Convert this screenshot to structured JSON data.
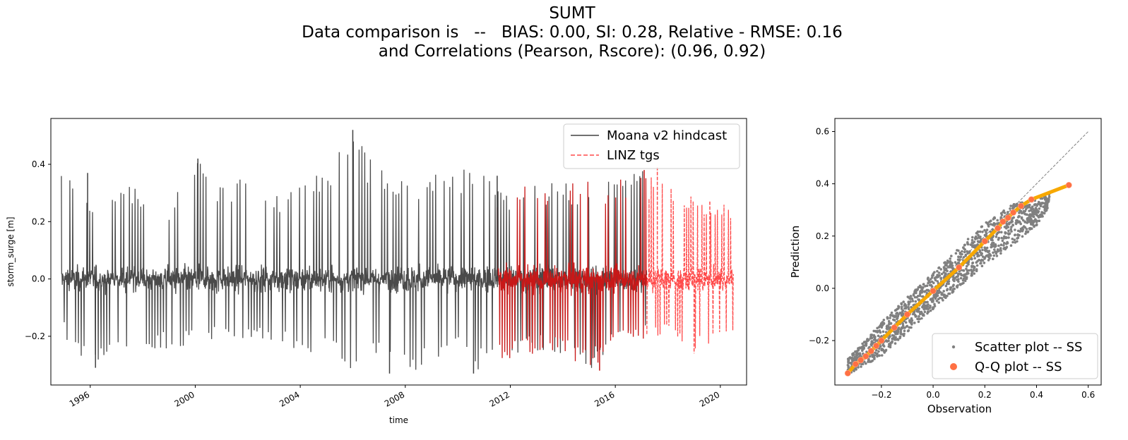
{
  "title": {
    "line1": "SUMT",
    "line2": "Data comparison is   --   BIAS: 0.00, SI: 0.28, Relative - RMSE: 0.16",
    "line3": "and Correlations (Pearson, Rscore): (0.96, 0.92)"
  },
  "colors": {
    "hindcast": "#404040",
    "tgs": "#ff4a4a",
    "overlap": "#c81818",
    "scatter": "#808080",
    "qq_face": "#ff7043",
    "qq_inner": "#f7a800",
    "diag": "#808080"
  },
  "chart_data": [
    {
      "type": "line",
      "xlabel": "time",
      "ylabel": "storm_surge [m]",
      "x_ticks": [
        "1996",
        "2000",
        "2004",
        "2008",
        "2012",
        "2016",
        "2020"
      ],
      "y_ticks": [
        "−0.2",
        "0.0",
        "0.2",
        "0.4"
      ],
      "xlim": [
        1994.5,
        2021.0
      ],
      "ylim": [
        -0.37,
        0.56
      ],
      "legend_position": "upper-right",
      "series": [
        {
          "name": "Moana v2 hindcast",
          "style": "solid",
          "x_range": [
            1994.9,
            2017.2
          ],
          "envelope": {
            "x": [
              1995,
              1996,
              1997,
              1998,
              1999,
              2000,
              2001,
              2002,
              2003,
              2004,
              2005,
              2006,
              2007,
              2008,
              2009,
              2010,
              2011,
              2012,
              2013,
              2014,
              2015,
              2016,
              2017
            ],
            "max": [
              0.37,
              0.26,
              0.34,
              0.32,
              0.25,
              0.42,
              0.33,
              0.37,
              0.29,
              0.36,
              0.37,
              0.52,
              0.39,
              0.34,
              0.38,
              0.39,
              0.36,
              0.3,
              0.35,
              0.33,
              0.36,
              0.34,
              0.38
            ],
            "min": [
              -0.2,
              -0.31,
              -0.23,
              -0.26,
              -0.24,
              -0.23,
              -0.2,
              -0.22,
              -0.23,
              -0.25,
              -0.27,
              -0.32,
              -0.29,
              -0.33,
              -0.3,
              -0.27,
              -0.33,
              -0.28,
              -0.26,
              -0.27,
              -0.32,
              -0.24,
              -0.21
            ]
          }
        },
        {
          "name": "LINZ tgs",
          "style": "dashed",
          "x_range": [
            2011.5,
            2020.5
          ],
          "envelope": {
            "x": [
              2012,
              2013,
              2014,
              2015,
              2016,
              2017,
              2018,
              2019,
              2020
            ],
            "max": [
              0.3,
              0.34,
              0.29,
              0.37,
              0.33,
              0.38,
              0.32,
              0.29,
              0.27
            ],
            "min": [
              -0.28,
              -0.26,
              -0.27,
              -0.31,
              -0.24,
              -0.22,
              -0.2,
              -0.26,
              -0.23
            ]
          }
        }
      ]
    },
    {
      "type": "scatter",
      "xlabel": "Observation",
      "ylabel": "Prediction",
      "x_ticks": [
        "−0.2",
        "0.0",
        "0.2",
        "0.4",
        "0.6"
      ],
      "y_ticks": [
        "−0.2",
        "0.0",
        "0.2",
        "0.4",
        "0.6"
      ],
      "xlim": [
        -0.38,
        0.65
      ],
      "ylim": [
        -0.37,
        0.65
      ],
      "legend_position": "lower-right",
      "series": [
        {
          "name": "Scatter plot -- SS",
          "marker": "dot",
          "envelope": {
            "x": [
              -0.33,
              -0.2,
              0.0,
              0.2,
              0.3,
              0.4,
              0.45
            ],
            "lower": [
              -0.33,
              -0.26,
              -0.08,
              0.09,
              0.16,
              0.24,
              0.31
            ],
            "upper": [
              -0.27,
              -0.13,
              0.06,
              0.25,
              0.32,
              0.34,
              0.36
            ]
          }
        },
        {
          "name": "Q-Q plot -- SS",
          "marker": "circle",
          "points": [
            [
              -0.33,
              -0.325
            ],
            [
              -0.3,
              -0.29
            ],
            [
              -0.28,
              -0.275
            ],
            [
              -0.26,
              -0.26
            ],
            [
              -0.24,
              -0.24
            ],
            [
              -0.22,
              -0.22
            ],
            [
              -0.2,
              -0.2
            ],
            [
              -0.15,
              -0.15
            ],
            [
              -0.1,
              -0.1
            ],
            [
              0.0,
              -0.01
            ],
            [
              0.1,
              0.08
            ],
            [
              0.2,
              0.18
            ],
            [
              0.25,
              0.23
            ],
            [
              0.27,
              0.255
            ],
            [
              0.29,
              0.27
            ],
            [
              0.31,
              0.29
            ],
            [
              0.34,
              0.315
            ],
            [
              0.38,
              0.34
            ],
            [
              0.525,
              0.395
            ]
          ]
        },
        {
          "name": "",
          "style": "dashed-diagonal",
          "points": [
            [
              -0.33,
              -0.33
            ],
            [
              0.6,
              0.6
            ]
          ]
        }
      ]
    }
  ]
}
